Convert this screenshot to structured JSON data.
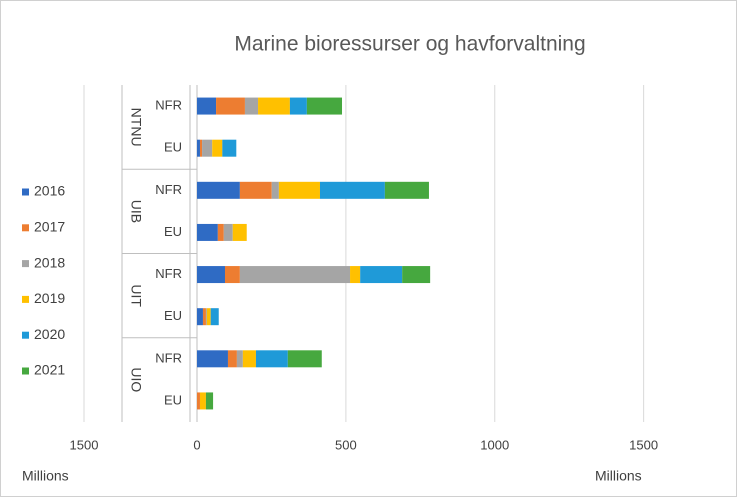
{
  "chart_data": {
    "type": "stacked-bar-horizontal",
    "title": "Marine bioressurser og havforvaltning",
    "groups": [
      "NTNU",
      "UIB",
      "UIT",
      "UIO"
    ],
    "categories": [
      "NFR",
      "EU",
      "NFR",
      "EU",
      "NFR",
      "EU",
      "NFR",
      "EU"
    ],
    "series": [
      {
        "name": "2016",
        "color": "#2f6bc4",
        "values": [
          64,
          10,
          144,
          70,
          94,
          20,
          104,
          0
        ]
      },
      {
        "name": "2017",
        "color": "#ed7d31",
        "values": [
          97,
          7,
          107,
          20,
          50,
          10,
          30,
          10
        ]
      },
      {
        "name": "2018",
        "color": "#a5a5a5",
        "values": [
          44,
          34,
          24,
          30,
          370,
          3,
          20,
          0
        ]
      },
      {
        "name": "2019",
        "color": "#ffc000",
        "values": [
          107,
          34,
          138,
          47,
          34,
          13,
          44,
          20
        ]
      },
      {
        "name": "2020",
        "color": "#1f9ad8",
        "values": [
          57,
          47,
          218,
          0,
          141,
          27,
          107,
          0
        ]
      },
      {
        "name": "2021",
        "color": "#46a83f",
        "values": [
          118,
          0,
          148,
          0,
          94,
          0,
          114,
          24
        ]
      }
    ],
    "xlim": [
      0,
      1790
    ],
    "xticks": [
      0,
      500,
      1000,
      1500
    ],
    "xlabel": "Millions",
    "x2lim": [
      1500,
      0
    ],
    "x2ticks": [
      1500
    ],
    "x2label": "Millions",
    "grid": true,
    "legend": "left"
  }
}
